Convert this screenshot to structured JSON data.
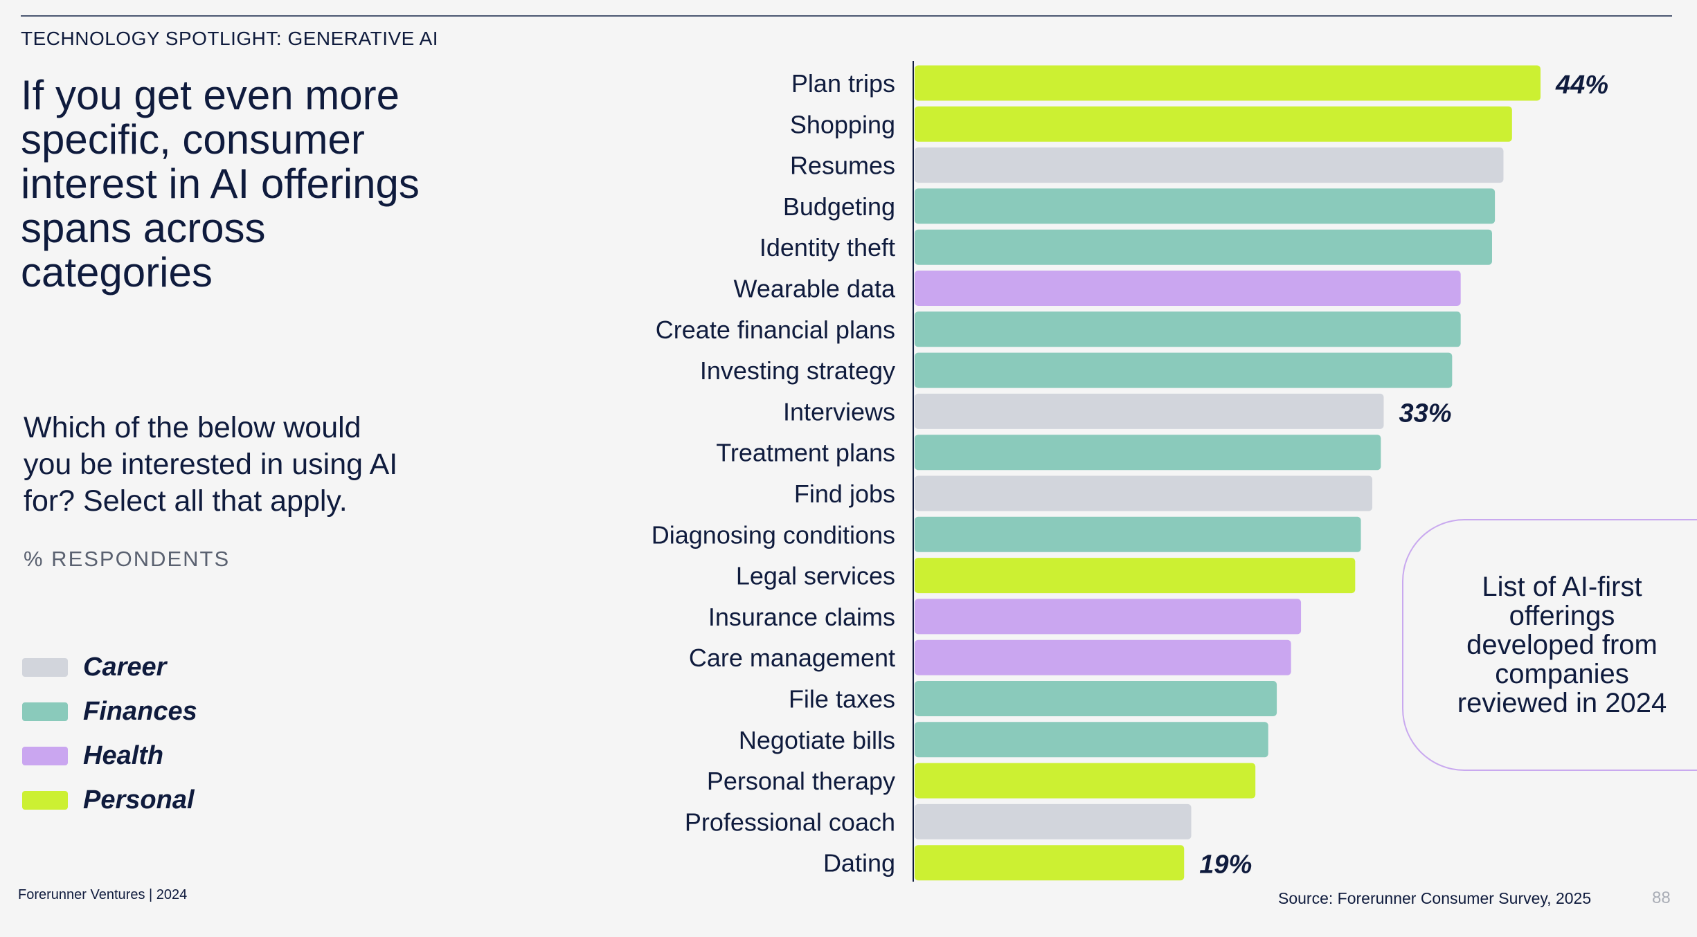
{
  "header": {
    "section_tag": "TECHNOLOGY SPOTLIGHT: GENERATIVE AI"
  },
  "headline": "If you get even more specific, consumer interest in AI offerings spans across categories",
  "question": "Which of the below would you be interested in using AI for? Select all that apply.",
  "unit_label": "% RESPONDENTS",
  "legend": [
    {
      "label": "Career",
      "color": "#d2d5dc"
    },
    {
      "label": "Finances",
      "color": "#8acabb"
    },
    {
      "label": "Health",
      "color": "#caa6f0"
    },
    {
      "label": "Personal",
      "color": "#ccf032"
    }
  ],
  "callout": {
    "text": "List of AI-first offerings developed from companies reviewed in 2024"
  },
  "footer": {
    "left": "Forerunner Ventures | 2024",
    "source": "Source: Forerunner Consumer Survey, 2025",
    "page_number": "88"
  },
  "chart_data": {
    "type": "bar",
    "orientation": "horizontal",
    "categories": [
      "Plan trips",
      "Shopping",
      "Resumes",
      "Budgeting",
      "Identity theft",
      "Wearable data",
      "Create financial plans",
      "Investing strategy",
      "Interviews",
      "Treatment plans",
      "Find jobs",
      "Diagnosing conditions",
      "Legal services",
      "Insurance claims",
      "Care management",
      "File taxes",
      "Negotiate bills",
      "Personal therapy",
      "Professional coach",
      "Dating"
    ],
    "values": [
      44,
      42,
      41.4,
      40.8,
      40.6,
      38.4,
      38.4,
      37.8,
      33,
      32.8,
      32.2,
      31.4,
      31,
      27.2,
      26.5,
      25.5,
      24.9,
      24,
      19.5,
      19
    ],
    "groups": [
      "Personal",
      "Personal",
      "Career",
      "Finances",
      "Finances",
      "Health",
      "Finances",
      "Finances",
      "Career",
      "Finances",
      "Career",
      "Finances",
      "Personal",
      "Health",
      "Health",
      "Finances",
      "Finances",
      "Personal",
      "Career",
      "Personal"
    ],
    "data_labels": [
      {
        "index": 0,
        "text": "44%"
      },
      {
        "index": 8,
        "text": "33%"
      },
      {
        "index": 19,
        "text": "19%"
      }
    ],
    "xlim": [
      0,
      44
    ],
    "grid": false
  }
}
